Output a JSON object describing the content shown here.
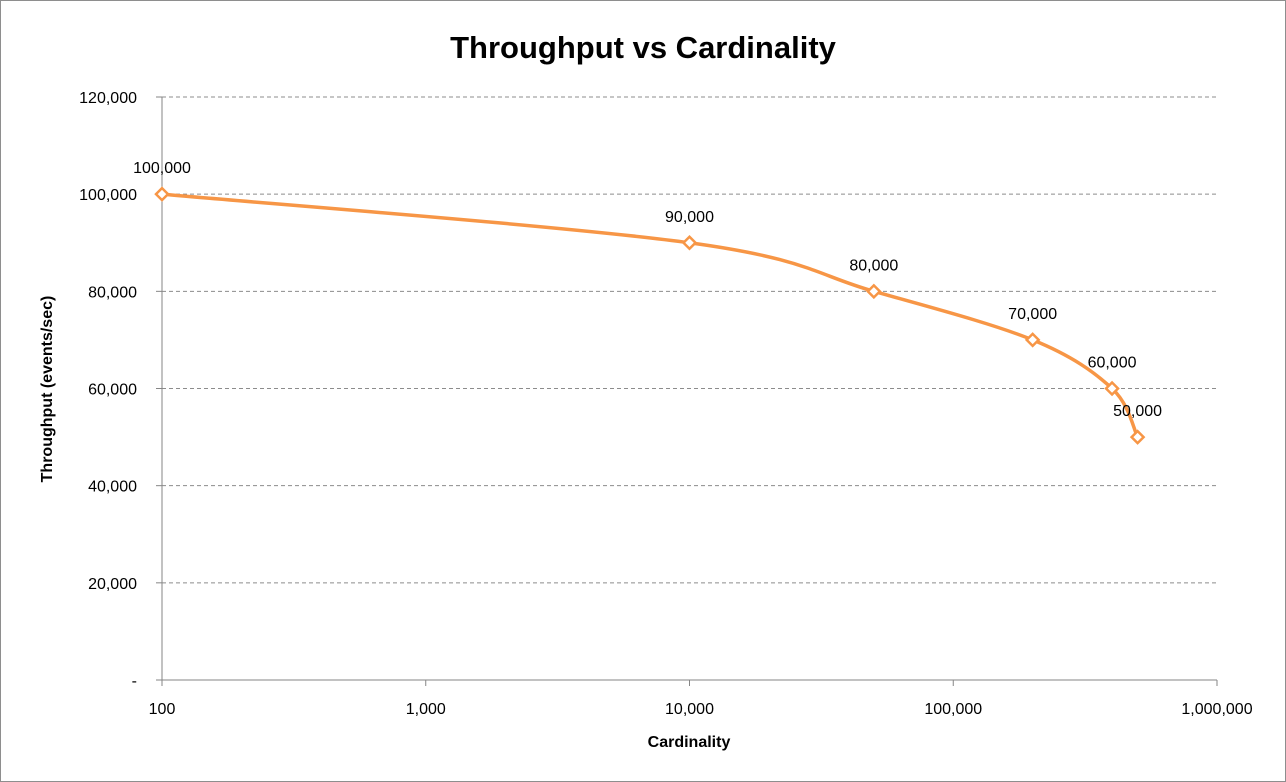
{
  "chart_data": {
    "type": "line",
    "title": "Throughput vs Cardinality",
    "xlabel": "Cardinality",
    "ylabel": "Throughput (events/sec)",
    "x_scale": "log",
    "xlim": [
      100,
      1000000
    ],
    "ylim": [
      0,
      120000
    ],
    "x_ticks": [
      {
        "value": 100,
        "label": "100"
      },
      {
        "value": 1000,
        "label": "1,000"
      },
      {
        "value": 10000,
        "label": "10,000"
      },
      {
        "value": 100000,
        "label": "100,000"
      },
      {
        "value": 1000000,
        "label": "1,000,000"
      }
    ],
    "y_ticks": [
      {
        "value": 0,
        "label": "-"
      },
      {
        "value": 20000,
        "label": "20,000"
      },
      {
        "value": 40000,
        "label": "40,000"
      },
      {
        "value": 60000,
        "label": "60,000"
      },
      {
        "value": 80000,
        "label": "80,000"
      },
      {
        "value": 100000,
        "label": "100,000"
      },
      {
        "value": 120000,
        "label": "120,000"
      }
    ],
    "grid": "horizontal dashed",
    "legend": "none",
    "series": [
      {
        "color": "#f79646",
        "marker": "diamond",
        "smooth": true,
        "points": [
          {
            "x": 100,
            "y": 100000,
            "label": "100,000"
          },
          {
            "x": 10000,
            "y": 90000,
            "label": "90,000"
          },
          {
            "x": 50000,
            "y": 80000,
            "label": "80,000"
          },
          {
            "x": 200000,
            "y": 70000,
            "label": "70,000"
          },
          {
            "x": 400000,
            "y": 60000,
            "label": "60,000"
          },
          {
            "x": 500000,
            "y": 50000,
            "label": "50,000"
          }
        ]
      }
    ]
  }
}
